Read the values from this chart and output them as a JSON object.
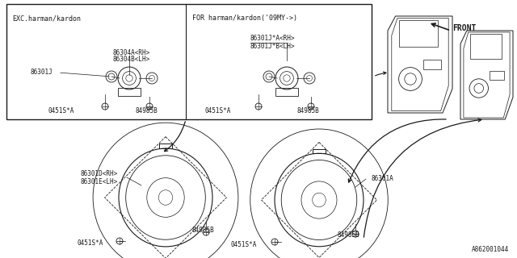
{
  "bg_color": "#ffffff",
  "line_color": "#1a1a1a",
  "title_bottom": "A862001044",
  "box1_label": "EXC.harman/kardon",
  "box2_label": "FOR harman/kardon('09MY->)",
  "front_label": "FRONT",
  "figsize": [
    6.4,
    3.2
  ],
  "dpi": 100,
  "xlim": [
    0,
    640
  ],
  "ylim": [
    0,
    320
  ]
}
